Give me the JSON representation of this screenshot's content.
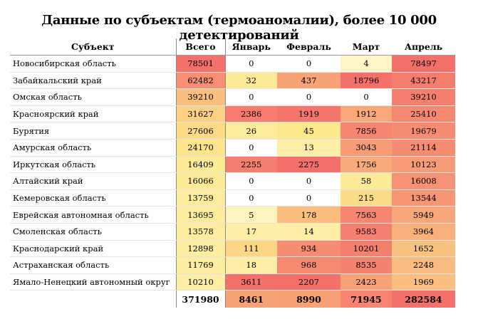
{
  "title": "Данные по субъектам (термоаномалии), более 10 000 детектирований",
  "headers": [
    "Субъект",
    "Всего",
    "Январь",
    "Февраль",
    "Март",
    "Апрель"
  ],
  "rows": [
    {
      "name": "Новосибирская область",
      "values": [
        78501,
        0,
        0,
        4,
        78497
      ]
    },
    {
      "name": "Забайкальский край",
      "values": [
        62482,
        32,
        437,
        18796,
        43217
      ]
    },
    {
      "name": "Омская область",
      "values": [
        39210,
        0,
        0,
        0,
        39210
      ]
    },
    {
      "name": "Красноярский край",
      "values": [
        31627,
        2386,
        1919,
        1912,
        25410
      ]
    },
    {
      "name": "Бурятия",
      "values": [
        27606,
        26,
        45,
        7856,
        19679
      ]
    },
    {
      "name": "Амурская область",
      "values": [
        24170,
        0,
        13,
        3043,
        21114
      ]
    },
    {
      "name": "Иркутская область",
      "values": [
        16409,
        2255,
        2275,
        1756,
        10123
      ]
    },
    {
      "name": "Алтайский край",
      "values": [
        16066,
        0,
        0,
        58,
        16008
      ]
    },
    {
      "name": "Кемеровская область",
      "values": [
        13759,
        0,
        0,
        215,
        13544
      ]
    },
    {
      "name": "Еврейская автономная область",
      "values": [
        13695,
        5,
        178,
        7563,
        5949
      ]
    },
    {
      "name": "Смоленская область",
      "values": [
        13578,
        17,
        14,
        9583,
        3964
      ]
    },
    {
      "name": "Краснодарский край",
      "values": [
        12898,
        111,
        934,
        10201,
        1652
      ]
    },
    {
      "name": "Астраханская область",
      "values": [
        11769,
        18,
        968,
        8535,
        2248
      ]
    },
    {
      "name": "Ямало-Ненецкий автономный округ",
      "values": [
        10210,
        3611,
        2207,
        2423,
        1969
      ]
    }
  ],
  "totals": [
    "",
    371980,
    8461,
    8990,
    71945,
    282584
  ],
  "colors": {
    "low": "#fffbe8",
    "mid": "#fde88a",
    "high": "#f4706b"
  }
}
